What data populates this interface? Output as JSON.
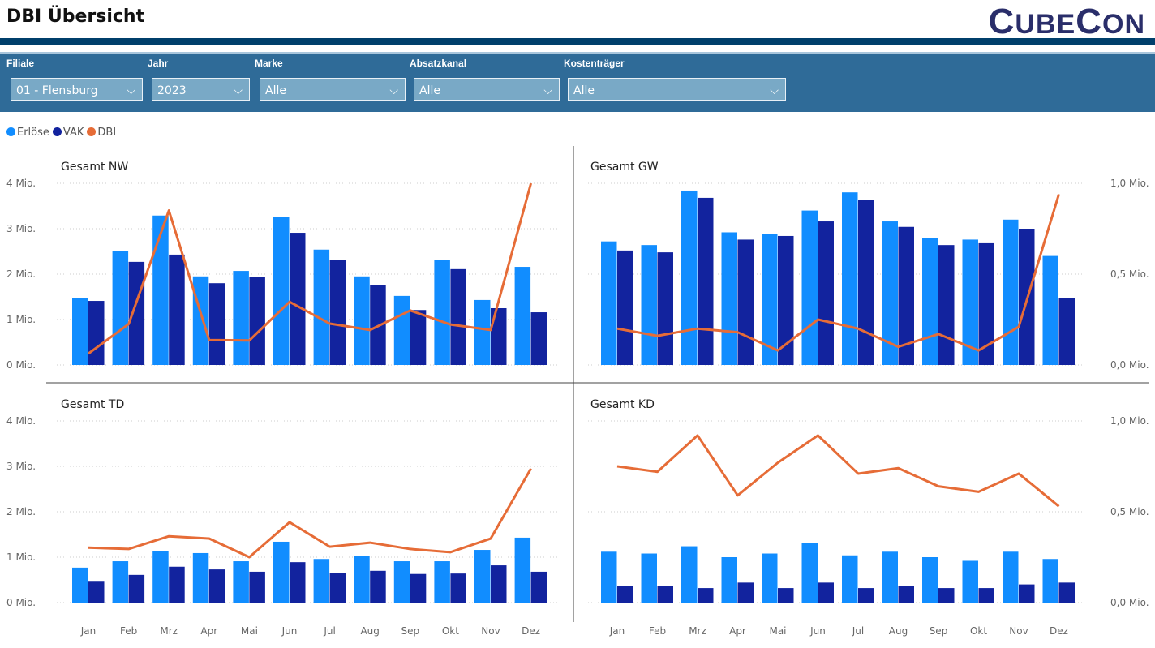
{
  "header": {
    "title": "DBI Übersicht",
    "logo": "CubeCon"
  },
  "filters": [
    {
      "label": "Filiale",
      "value": "01 - Flensburg"
    },
    {
      "label": "Jahr",
      "value": "2023"
    },
    {
      "label": "Marke",
      "value": "Alle"
    },
    {
      "label": "Absatzkanal",
      "value": "Alle"
    },
    {
      "label": "Kostenträger",
      "value": "Alle"
    }
  ],
  "legend": [
    {
      "label": "Erlöse",
      "color": "#118DFF"
    },
    {
      "label": "VAK",
      "color": "#12239E"
    },
    {
      "label": "DBI",
      "color": "#E66C37"
    }
  ],
  "chart_data": [
    {
      "type": "bar+line",
      "title": "Gesamt NW",
      "categories": [
        "Jan",
        "Feb",
        "Mrz",
        "Apr",
        "Mai",
        "Jun",
        "Jul",
        "Aug",
        "Sep",
        "Okt",
        "Nov",
        "Dez"
      ],
      "axis": {
        "side": "left",
        "ticks": [
          "0 Mio.",
          "1 Mio.",
          "2 Mio.",
          "3 Mio.",
          "4 Mio."
        ],
        "range": [
          0,
          4
        ]
      },
      "series": [
        {
          "name": "Erlöse",
          "values": [
            1.48,
            2.5,
            3.29,
            1.95,
            2.07,
            3.25,
            2.54,
            1.95,
            1.52,
            2.32,
            1.43,
            2.16
          ]
        },
        {
          "name": "VAK",
          "values": [
            1.41,
            2.27,
            2.43,
            1.8,
            1.93,
            2.91,
            2.32,
            1.75,
            1.21,
            2.11,
            1.25,
            1.16
          ]
        },
        {
          "name": "DBI",
          "values": [
            0.25,
            0.9,
            3.4,
            0.55,
            0.54,
            1.39,
            0.91,
            0.77,
            1.2,
            0.89,
            0.77,
            4.0
          ]
        }
      ]
    },
    {
      "type": "bar+line",
      "title": "Gesamt GW",
      "categories": [
        "Jan",
        "Feb",
        "Mrz",
        "Apr",
        "Mai",
        "Jun",
        "Jul",
        "Aug",
        "Sep",
        "Okt",
        "Nov",
        "Dez"
      ],
      "axis": {
        "side": "right",
        "ticks": [
          "0,0 Mio.",
          "0,5 Mio.",
          "1,0 Mio."
        ],
        "range": [
          0,
          1
        ]
      },
      "series": [
        {
          "name": "Erlöse",
          "values": [
            0.68,
            0.66,
            0.96,
            0.73,
            0.72,
            0.85,
            0.95,
            0.79,
            0.7,
            0.69,
            0.8,
            0.6
          ]
        },
        {
          "name": "VAK",
          "values": [
            0.63,
            0.62,
            0.92,
            0.69,
            0.71,
            0.79,
            0.91,
            0.76,
            0.66,
            0.67,
            0.75,
            0.37
          ]
        },
        {
          "name": "DBI",
          "values": [
            0.2,
            0.16,
            0.2,
            0.18,
            0.08,
            0.25,
            0.2,
            0.1,
            0.17,
            0.08,
            0.21,
            0.94
          ]
        }
      ]
    },
    {
      "type": "bar+line",
      "title": "Gesamt TD",
      "categories": [
        "Jan",
        "Feb",
        "Mrz",
        "Apr",
        "Mai",
        "Jun",
        "Jul",
        "Aug",
        "Sep",
        "Okt",
        "Nov",
        "Dez"
      ],
      "axis": {
        "side": "left",
        "ticks": [
          "0 Mio.",
          "1 Mio.",
          "2 Mio.",
          "3 Mio.",
          "4 Mio."
        ],
        "range": [
          0,
          4
        ]
      },
      "series": [
        {
          "name": "Erlöse",
          "values": [
            0.77,
            0.91,
            1.14,
            1.09,
            0.91,
            1.34,
            0.96,
            1.02,
            0.91,
            0.91,
            1.16,
            1.43
          ]
        },
        {
          "name": "VAK",
          "values": [
            0.46,
            0.61,
            0.79,
            0.73,
            0.68,
            0.89,
            0.66,
            0.7,
            0.63,
            0.64,
            0.82,
            0.68
          ]
        },
        {
          "name": "DBI",
          "values": [
            1.21,
            1.18,
            1.46,
            1.41,
            1.0,
            1.77,
            1.23,
            1.32,
            1.18,
            1.11,
            1.41,
            2.95
          ]
        }
      ]
    },
    {
      "type": "bar+line",
      "title": "Gesamt KD",
      "categories": [
        "Jan",
        "Feb",
        "Mrz",
        "Apr",
        "Mai",
        "Jun",
        "Jul",
        "Aug",
        "Sep",
        "Okt",
        "Nov",
        "Dez"
      ],
      "axis": {
        "side": "right",
        "ticks": [
          "0,0 Mio.",
          "0,5 Mio.",
          "1,0 Mio."
        ],
        "range": [
          0,
          1
        ]
      },
      "series": [
        {
          "name": "Erlöse",
          "values": [
            0.28,
            0.27,
            0.31,
            0.25,
            0.27,
            0.33,
            0.26,
            0.28,
            0.25,
            0.23,
            0.28,
            0.24
          ]
        },
        {
          "name": "VAK",
          "values": [
            0.09,
            0.09,
            0.08,
            0.11,
            0.08,
            0.11,
            0.08,
            0.09,
            0.08,
            0.08,
            0.1,
            0.11
          ]
        },
        {
          "name": "DBI",
          "values": [
            0.75,
            0.72,
            0.92,
            0.59,
            0.77,
            0.92,
            0.71,
            0.74,
            0.64,
            0.61,
            0.71,
            0.53
          ]
        }
      ]
    }
  ]
}
